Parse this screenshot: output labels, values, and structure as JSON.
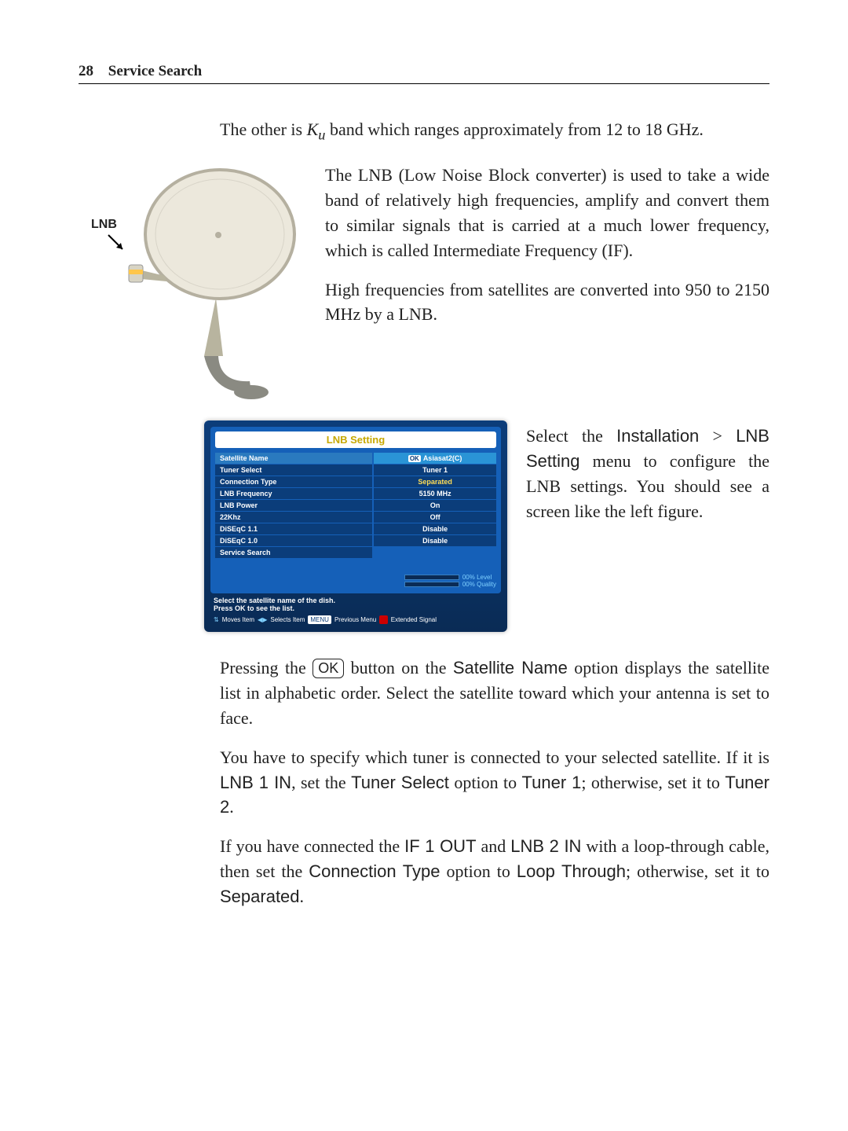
{
  "header": {
    "page_number": "28",
    "chapter": "Service Search"
  },
  "intro": {
    "line_pre": "The other is ",
    "k": "K",
    "ksub": "u",
    "line_post": " band which ranges approximately from 12 to 18 GHz."
  },
  "dish": {
    "lnb_label": "LNB",
    "dish_color": "#ece8dc",
    "dish_rim": "#b5b0a0",
    "arm_color": "#b8b49f",
    "stand_color": "#8a8a82",
    "lnb_band": "#ffc64a",
    "lnb_body": "#d8d4c4"
  },
  "para_lnb1": "The LNB (Low Noise Block converter) is used to take a wide band of relatively high frequencies, amplify and convert them to similar signals that is carried at a much lower frequency, which is called Intermediate Frequency (IF).",
  "para_lnb2": "High frequencies from satellites are converted into 950 to 2150 MHz by a LNB.",
  "osd": {
    "title": "LNB Setting",
    "rows": [
      {
        "label": "Satellite Name",
        "value": "Asiasat2(C)",
        "ok": true,
        "hl": true
      },
      {
        "label": "Tuner Select",
        "value": "Tuner 1"
      },
      {
        "label": "Connection Type",
        "value": "Separated",
        "yellow": true
      },
      {
        "label": "LNB Frequency",
        "value": "5150 MHz"
      },
      {
        "label": "LNB Power",
        "value": "On"
      },
      {
        "label": "22Khz",
        "value": "Off"
      },
      {
        "label": "DiSEqC 1.1",
        "value": "Disable"
      },
      {
        "label": "DiSEqC 1.0",
        "value": "Disable"
      },
      {
        "label": "Service Search",
        "value": ""
      }
    ],
    "meter_level": "00% Level",
    "meter_quality": "00% Quality",
    "help_line1": "Select the satellite name of the dish.",
    "help_line2": "Press OK to see the list.",
    "footer_moves": "Moves Item",
    "footer_selects": "Selects Item",
    "footer_menu": "MENU",
    "footer_prev": "Previous Menu",
    "footer_ext": "Extended Signal",
    "bg_top": "#0c3d7a",
    "bg_bot": "#0a2b55",
    "panel": "#1560b8",
    "row_dark": "#0b3d7a",
    "row_hl": "#2a94d6",
    "title_color": "#c7a800"
  },
  "para_select": {
    "pre": "Select the ",
    "menu1": "Installation",
    "gt": " > ",
    "menu2": "LNB Setting",
    "post": " menu to configure the LNB settings.      You should see a screen like the left figure."
  },
  "para_ok": {
    "pre": "Pressing the ",
    "key": "OK",
    "mid": " button on the ",
    "opt": "Satellite Name",
    "post": " option displays the satellite list in alphabetic order. Select the satellite toward which your antenna is set to face."
  },
  "para_tuner": {
    "pre": "You have to specify which tuner is connected to your selected satellite. If it is ",
    "lnb1in": "LNB 1 IN",
    "mid1": ", set the ",
    "tsel": "Tuner Select",
    "mid2": " option to ",
    "t1": "Tuner 1",
    "mid3": "; otherwise, set it to ",
    "t2": "Tuner 2",
    "end": "."
  },
  "para_conn": {
    "pre": "If you have connected the ",
    "if1": "IF 1 OUT",
    "mid1": " and ",
    "lnb2": "LNB 2 IN",
    "mid2": " with a loop-through cable, then set the ",
    "ctype": "Connection Type",
    "mid3": " option to ",
    "loop": "Loop Through",
    "mid4": "; otherwise, set it to ",
    "sep": "Separated",
    "end": "."
  }
}
